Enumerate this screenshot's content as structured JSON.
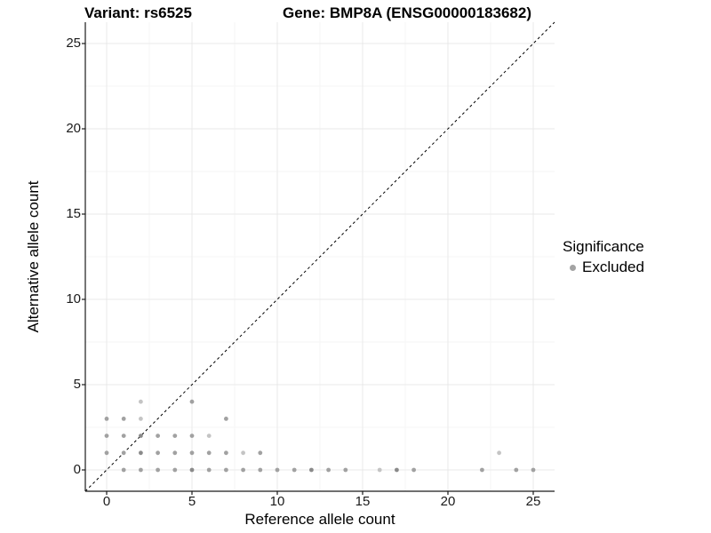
{
  "title": {
    "variant": "Variant: rs6525",
    "gene": "Gene: BMP8A (ENSG00000183682)"
  },
  "legend": {
    "title": "Significance",
    "items": [
      {
        "label": "Excluded",
        "color": "#a3a3a3"
      }
    ]
  },
  "colors": {
    "point_mid": "#a1a1a1",
    "point_dark": "#8a8a8a",
    "point_light": "#c4c4c4",
    "grid_major": "#e9e9e9",
    "grid_minor": "#f5f5f5",
    "axis_line": "#1a1a1a",
    "identity_line": "#000000",
    "background": "#ffffff"
  },
  "chart_data": {
    "type": "scatter",
    "title": "Variant: rs6525  Gene: BMP8A (ENSG00000183682)",
    "xlabel": "Reference allele count",
    "ylabel": "Alternative allele count",
    "xlim": [
      -1.25,
      26.25
    ],
    "ylim": [
      -1.25,
      26.25
    ],
    "x_ticks": [
      0,
      5,
      10,
      15,
      20,
      25
    ],
    "y_ticks": [
      0,
      5,
      10,
      15,
      20,
      25
    ],
    "minor_ticks": [
      2.5,
      7.5,
      12.5,
      17.5,
      22.5
    ],
    "grid": "major+minor",
    "identity_line": {
      "show": true,
      "style": "dashed",
      "from": [
        -1.25,
        -1.25
      ],
      "to": [
        26.25,
        26.25
      ]
    },
    "legend_position": "right",
    "series": [
      {
        "name": "Excluded",
        "points": [
          [
            0,
            1,
            "m"
          ],
          [
            0,
            2,
            "m"
          ],
          [
            0,
            3,
            "m"
          ],
          [
            1,
            0,
            "m"
          ],
          [
            1,
            1,
            "m"
          ],
          [
            1,
            2,
            "m"
          ],
          [
            1,
            3,
            "m"
          ],
          [
            2,
            0,
            "m"
          ],
          [
            2,
            1,
            "d"
          ],
          [
            2,
            2,
            "d"
          ],
          [
            2,
            3,
            "l"
          ],
          [
            2,
            4,
            "l"
          ],
          [
            3,
            0,
            "m"
          ],
          [
            3,
            1,
            "m"
          ],
          [
            3,
            2,
            "m"
          ],
          [
            4,
            0,
            "m"
          ],
          [
            4,
            1,
            "m"
          ],
          [
            4,
            2,
            "m"
          ],
          [
            5,
            0,
            "d"
          ],
          [
            5,
            1,
            "m"
          ],
          [
            5,
            2,
            "m"
          ],
          [
            5,
            4,
            "m"
          ],
          [
            6,
            0,
            "m"
          ],
          [
            6,
            1,
            "m"
          ],
          [
            6,
            2,
            "l"
          ],
          [
            7,
            0,
            "m"
          ],
          [
            7,
            1,
            "m"
          ],
          [
            7,
            3,
            "m"
          ],
          [
            8,
            0,
            "m"
          ],
          [
            8,
            1,
            "l"
          ],
          [
            9,
            0,
            "m"
          ],
          [
            9,
            1,
            "m"
          ],
          [
            10,
            0,
            "m"
          ],
          [
            11,
            0,
            "m"
          ],
          [
            12,
            0,
            "d"
          ],
          [
            13,
            0,
            "m"
          ],
          [
            14,
            0,
            "m"
          ],
          [
            16,
            0,
            "l"
          ],
          [
            17,
            0,
            "d"
          ],
          [
            18,
            0,
            "m"
          ],
          [
            22,
            0,
            "m"
          ],
          [
            23,
            1,
            "l"
          ],
          [
            24,
            0,
            "m"
          ],
          [
            25,
            0,
            "m"
          ]
        ]
      }
    ]
  }
}
